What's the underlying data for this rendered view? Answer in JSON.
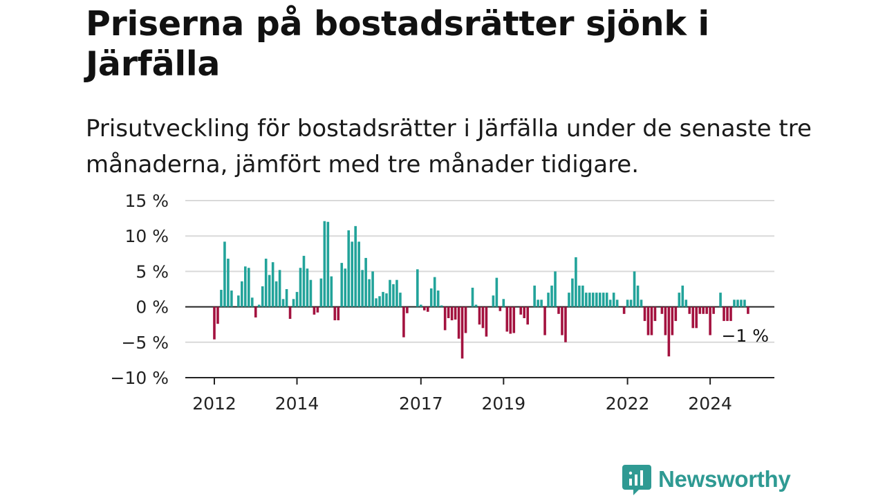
{
  "header": {
    "title": "Priserna på bostadsrätter sjönk i Järfälla",
    "subtitle": "Prisutveckling för bostadsrätter i Järfälla under de senaste tre månaderna, jämfört med tre månader tidigare."
  },
  "brand": {
    "name": "Newsworthy",
    "icon": "newsworthy-logo-icon",
    "color": "#2f9a93"
  },
  "chart_data": {
    "type": "bar",
    "title": "",
    "xlabel": "",
    "ylabel": "",
    "ylim": [
      -10,
      15
    ],
    "yticks": [
      15,
      10,
      5,
      0,
      -5,
      -10
    ],
    "ytick_labels": [
      "15 %",
      "10 %",
      "5 %",
      "0 %",
      "−5 %",
      "−10 %"
    ],
    "xticks": [
      {
        "label": "2012",
        "month_index": 0
      },
      {
        "label": "2014",
        "month_index": 24
      },
      {
        "label": "2017",
        "month_index": 60
      },
      {
        "label": "2019",
        "month_index": 84
      },
      {
        "label": "2022",
        "month_index": 120
      },
      {
        "label": "2024",
        "month_index": 144
      }
    ],
    "x_start": "2012-01",
    "x_end": "2024-12",
    "grid": true,
    "colors": {
      "positive": "#22a39a",
      "negative": "#a3123f",
      "grid": "#d9d9d9",
      "axis": "#222222"
    },
    "values": [
      -4.6,
      -2.4,
      2.4,
      9.2,
      6.8,
      2.3,
      0,
      1.6,
      3.6,
      5.7,
      5.5,
      1.3,
      -1.5,
      0.3,
      2.9,
      6.8,
      4.5,
      6.3,
      3.6,
      5.2,
      1.1,
      2.5,
      -1.7,
      1.1,
      2.1,
      5.5,
      7.2,
      5.4,
      3.8,
      -1.1,
      -0.8,
      4,
      12.1,
      12,
      4.3,
      -1.9,
      -1.9,
      6.2,
      5.4,
      10.8,
      9.2,
      11.4,
      9.2,
      5.2,
      6.9,
      3.9,
      5,
      1.2,
      1.5,
      2.1,
      1.9,
      3.8,
      3.2,
      3.8,
      2,
      -4.3,
      -0.9,
      0,
      0,
      5.3,
      0.3,
      -0.5,
      -0.7,
      2.6,
      4.2,
      2.3,
      0.2,
      -3.3,
      -1.6,
      -1.9,
      -1.8,
      -4.5,
      -7.3,
      -3.7,
      0,
      2.7,
      0.3,
      -2.5,
      -3,
      -4.2,
      0,
      1.6,
      4.1,
      -0.6,
      1.1,
      -3.5,
      -3.8,
      -3.7,
      0,
      -1.1,
      -1.6,
      -2.5,
      0,
      3,
      1,
      1,
      -4,
      2,
      3,
      5,
      -1,
      -4,
      -5,
      2,
      4,
      7,
      3,
      3,
      2,
      2,
      2,
      2,
      2,
      2,
      2,
      1,
      2,
      1,
      0,
      -1,
      1,
      1,
      5,
      3,
      1,
      -2,
      -4,
      -4,
      -2,
      0,
      -1,
      -4,
      -7,
      -4,
      -2,
      2,
      3,
      1,
      -1,
      -3,
      -3,
      -1,
      -1,
      -1,
      -4,
      -1,
      0,
      2,
      -2,
      -2,
      -2,
      1,
      1,
      1,
      1,
      -1
    ],
    "annotations": [
      {
        "text": "−1 %",
        "month_index": 155
      }
    ]
  }
}
